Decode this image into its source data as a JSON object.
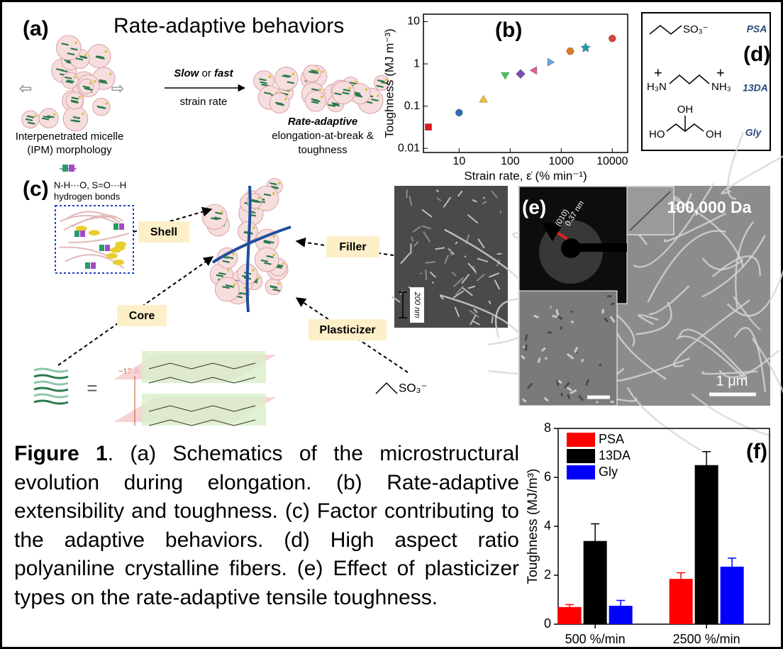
{
  "panel_a": {
    "label": "(a)",
    "title": "Rate-adaptive behaviors",
    "slow": "Slow",
    "or": "or",
    "fast": "fast",
    "strain_rate": "strain rate",
    "left_caption": [
      "Interpenetrated micelle",
      "(IPM) morphology"
    ],
    "right_caption": [
      "Rate-adaptive",
      "elongation-at-break &",
      "toughness"
    ]
  },
  "panel_c": {
    "label": "(c)",
    "bonds": [
      "N-H···O, S=O···H",
      "hydrogen bonds"
    ],
    "callouts": {
      "shell": "Shell",
      "filler": "Filler",
      "core": "Core",
      "plasticizer": "Plasticizer"
    },
    "spacing": "~12 Å",
    "equals": "=",
    "plasticizer_group": "SO₃⁻",
    "scale": "200 nm"
  },
  "panel_d": {
    "label": "(d)",
    "compounds": [
      {
        "name": "PSA",
        "groups": [
          "SO₃⁻"
        ]
      },
      {
        "name": "13DA",
        "groups": [
          "+",
          "+",
          "H₃N",
          "NH₃"
        ]
      },
      {
        "name": "Gly",
        "groups": [
          "OH",
          "HO",
          "OH"
        ]
      }
    ]
  },
  "panel_e": {
    "label": "(e)",
    "molecular_weight": "100,000 Da",
    "plane": "(010)",
    "d_spacing": "0.37 nm",
    "scale": "1 μm"
  },
  "chart_data": [
    {
      "type": "scatter",
      "label": "(b)",
      "xlabel": "Strain rate, ε̇ (% min⁻¹)",
      "ylabel": "Toughness (MJ m⁻³)",
      "x": [
        2.5,
        10,
        30,
        80,
        160,
        300,
        600,
        1500,
        3000,
        10000
      ],
      "values": [
        0.032,
        0.07,
        0.14,
        0.55,
        0.58,
        0.7,
        1.1,
        2.0,
        2.4,
        4.0
      ],
      "colors": [
        "#e0141e",
        "#2f6db5",
        "#f2c12e",
        "#3cc85a",
        "#7a4fb0",
        "#e85a9a",
        "#6aa6e8",
        "#e07a1e",
        "#1f9aa8",
        "#d9433d"
      ],
      "markers": [
        "square",
        "circle",
        "triangle-up",
        "triangle-down",
        "diamond",
        "triangle-left",
        "triangle-right",
        "hexagon",
        "star",
        "circle"
      ],
      "xscale": "log",
      "yscale": "log",
      "xlim": [
        2,
        20000
      ],
      "ylim": [
        0.008,
        15
      ],
      "xticks": [
        10,
        100,
        1000,
        10000
      ],
      "yticks": [
        0.01,
        0.1,
        1,
        10
      ]
    },
    {
      "type": "bar",
      "label": "(f)",
      "ylabel": "Toughness (MJ/m³)",
      "categories": [
        "500 %/min",
        "2500 %/min"
      ],
      "series": [
        {
          "name": "PSA",
          "color": "#ff0000",
          "values": [
            0.7,
            1.85
          ],
          "errors": [
            0.1,
            0.25
          ]
        },
        {
          "name": "13DA",
          "color": "#000000",
          "values": [
            3.4,
            6.5
          ],
          "errors": [
            0.7,
            0.55
          ]
        },
        {
          "name": "Gly",
          "color": "#0000ff",
          "values": [
            0.75,
            2.35
          ],
          "errors": [
            0.22,
            0.35
          ]
        }
      ],
      "ylim": [
        0,
        8
      ],
      "yticks": [
        0,
        2,
        4,
        6,
        8
      ],
      "legend": "upper left"
    }
  ],
  "caption": {
    "label": "Figure 1",
    "text": ". (a) Schematics of the microstructural evolution during elongation. (b) Rate-adaptive extensibility and toughness. (c) Factor contributing to the adaptive behaviors. (d) High aspect ratio polyaniline crystalline fibers. (e) Effect of plasticizer types on the rate-adaptive tensile toughness."
  }
}
